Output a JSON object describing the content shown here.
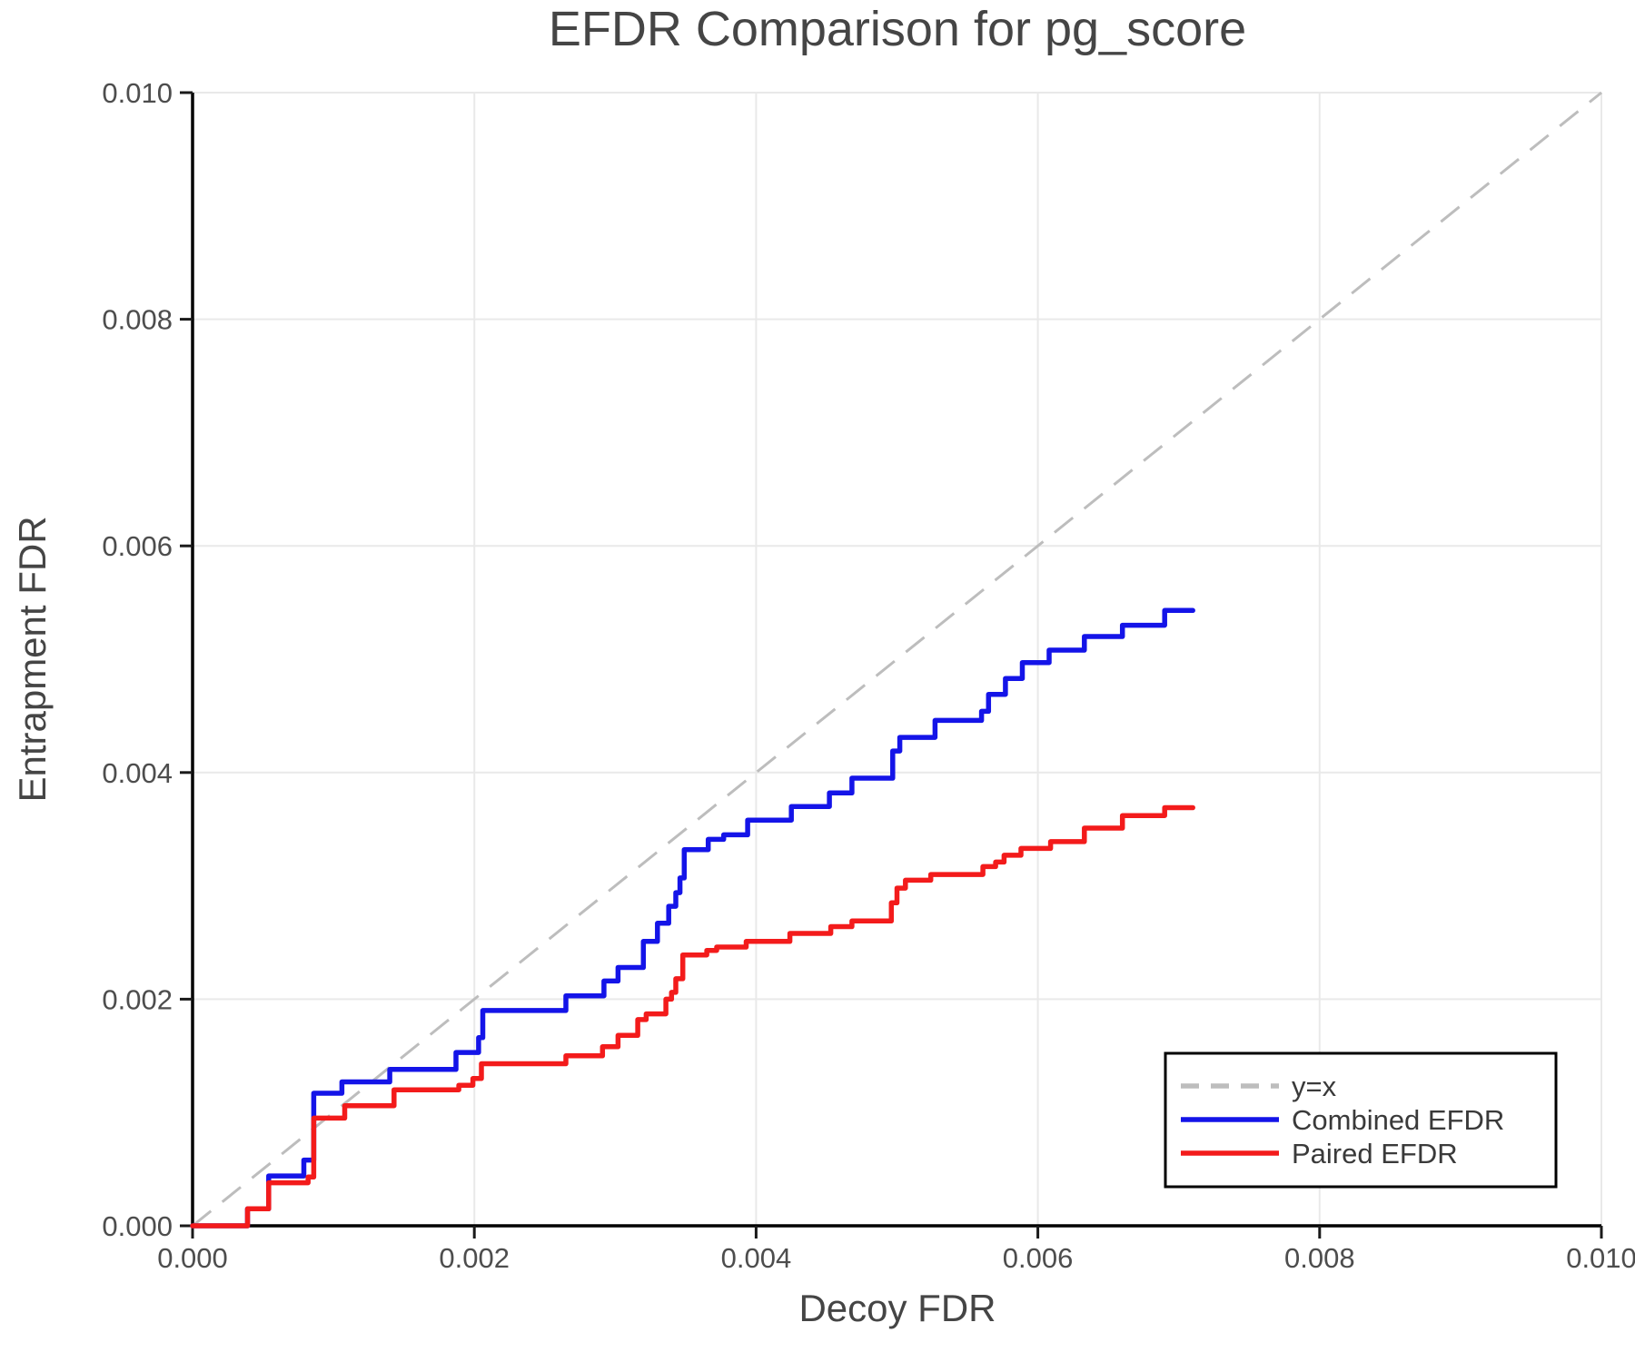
{
  "chart_data": {
    "type": "line",
    "title": "EFDR Comparison for pg_score",
    "xlabel": "Decoy FDR",
    "ylabel": "Entrapment FDR",
    "xlim": [
      0.0,
      0.01
    ],
    "ylim": [
      0.0,
      0.01
    ],
    "xticks": [
      0.0,
      0.002,
      0.004,
      0.006,
      0.008,
      0.01
    ],
    "yticks": [
      0.0,
      0.002,
      0.004,
      0.006,
      0.008,
      0.01
    ],
    "tick_decimals": 3,
    "grid": true,
    "background_color": "#ffffff",
    "identity_line": {
      "label": "y=x",
      "color": "#bdbdbd",
      "dashed": true,
      "from": [
        0.0,
        0.0
      ],
      "to": [
        0.01,
        0.01
      ]
    },
    "legend": {
      "position": "lower right",
      "entries": [
        {
          "label": "y=x",
          "color": "#bdbdbd",
          "dashed": true
        },
        {
          "label": "Combined EFDR",
          "color": "#1414e8",
          "dashed": false
        },
        {
          "label": "Paired EFDR",
          "color": "#f31b1b",
          "dashed": false
        }
      ]
    },
    "series": [
      {
        "name": "Combined EFDR",
        "color": "#1414e8",
        "style": "step-post",
        "x_end": 0.0071,
        "points": [
          [
            0.0,
            0.0
          ],
          [
            0.00039,
            0.00015
          ],
          [
            0.00054,
            0.00044
          ],
          [
            0.00079,
            0.00058
          ],
          [
            0.00086,
            0.00117
          ],
          [
            0.00106,
            0.00127
          ],
          [
            0.0014,
            0.00138
          ],
          [
            0.00187,
            0.00153
          ],
          [
            0.00203,
            0.00166
          ],
          [
            0.00206,
            0.0019
          ],
          [
            0.00265,
            0.00203
          ],
          [
            0.00292,
            0.00216
          ],
          [
            0.00302,
            0.00228
          ],
          [
            0.0032,
            0.00251
          ],
          [
            0.0033,
            0.00267
          ],
          [
            0.00338,
            0.00282
          ],
          [
            0.00343,
            0.00294
          ],
          [
            0.00346,
            0.00307
          ],
          [
            0.00349,
            0.00332
          ],
          [
            0.00366,
            0.00341
          ],
          [
            0.00377,
            0.00345
          ],
          [
            0.00394,
            0.00358
          ],
          [
            0.00425,
            0.0037
          ],
          [
            0.00452,
            0.00382
          ],
          [
            0.00468,
            0.00395
          ],
          [
            0.00497,
            0.00419
          ],
          [
            0.00502,
            0.00431
          ],
          [
            0.00527,
            0.00446
          ],
          [
            0.0056,
            0.00454
          ],
          [
            0.00565,
            0.00469
          ],
          [
            0.00577,
            0.00483
          ],
          [
            0.00589,
            0.00497
          ],
          [
            0.00608,
            0.00508
          ],
          [
            0.00633,
            0.0052
          ],
          [
            0.0066,
            0.0053
          ],
          [
            0.0069,
            0.00543
          ]
        ]
      },
      {
        "name": "Paired EFDR",
        "color": "#f31b1b",
        "style": "step-post",
        "x_end": 0.0071,
        "points": [
          [
            0.0,
            0.0
          ],
          [
            0.00039,
            0.00015
          ],
          [
            0.00054,
            0.00038
          ],
          [
            0.00082,
            0.00043
          ],
          [
            0.00086,
            0.00095
          ],
          [
            0.00108,
            0.00106
          ],
          [
            0.00143,
            0.0012
          ],
          [
            0.00189,
            0.00124
          ],
          [
            0.00199,
            0.0013
          ],
          [
            0.00205,
            0.00143
          ],
          [
            0.00265,
            0.0015
          ],
          [
            0.00291,
            0.00158
          ],
          [
            0.00302,
            0.00168
          ],
          [
            0.00316,
            0.00182
          ],
          [
            0.00322,
            0.00187
          ],
          [
            0.00336,
            0.002
          ],
          [
            0.0034,
            0.00206
          ],
          [
            0.00343,
            0.00218
          ],
          [
            0.00348,
            0.00239
          ],
          [
            0.00365,
            0.00243
          ],
          [
            0.00372,
            0.00246
          ],
          [
            0.00393,
            0.00251
          ],
          [
            0.00424,
            0.00258
          ],
          [
            0.00453,
            0.00264
          ],
          [
            0.00468,
            0.00269
          ],
          [
            0.00496,
            0.00285
          ],
          [
            0.005,
            0.00298
          ],
          [
            0.00506,
            0.00305
          ],
          [
            0.00524,
            0.0031
          ],
          [
            0.00561,
            0.00317
          ],
          [
            0.0057,
            0.00321
          ],
          [
            0.00576,
            0.00327
          ],
          [
            0.00588,
            0.00333
          ],
          [
            0.00609,
            0.00339
          ],
          [
            0.00633,
            0.00351
          ],
          [
            0.0066,
            0.00362
          ],
          [
            0.0069,
            0.00369
          ]
        ]
      }
    ]
  }
}
